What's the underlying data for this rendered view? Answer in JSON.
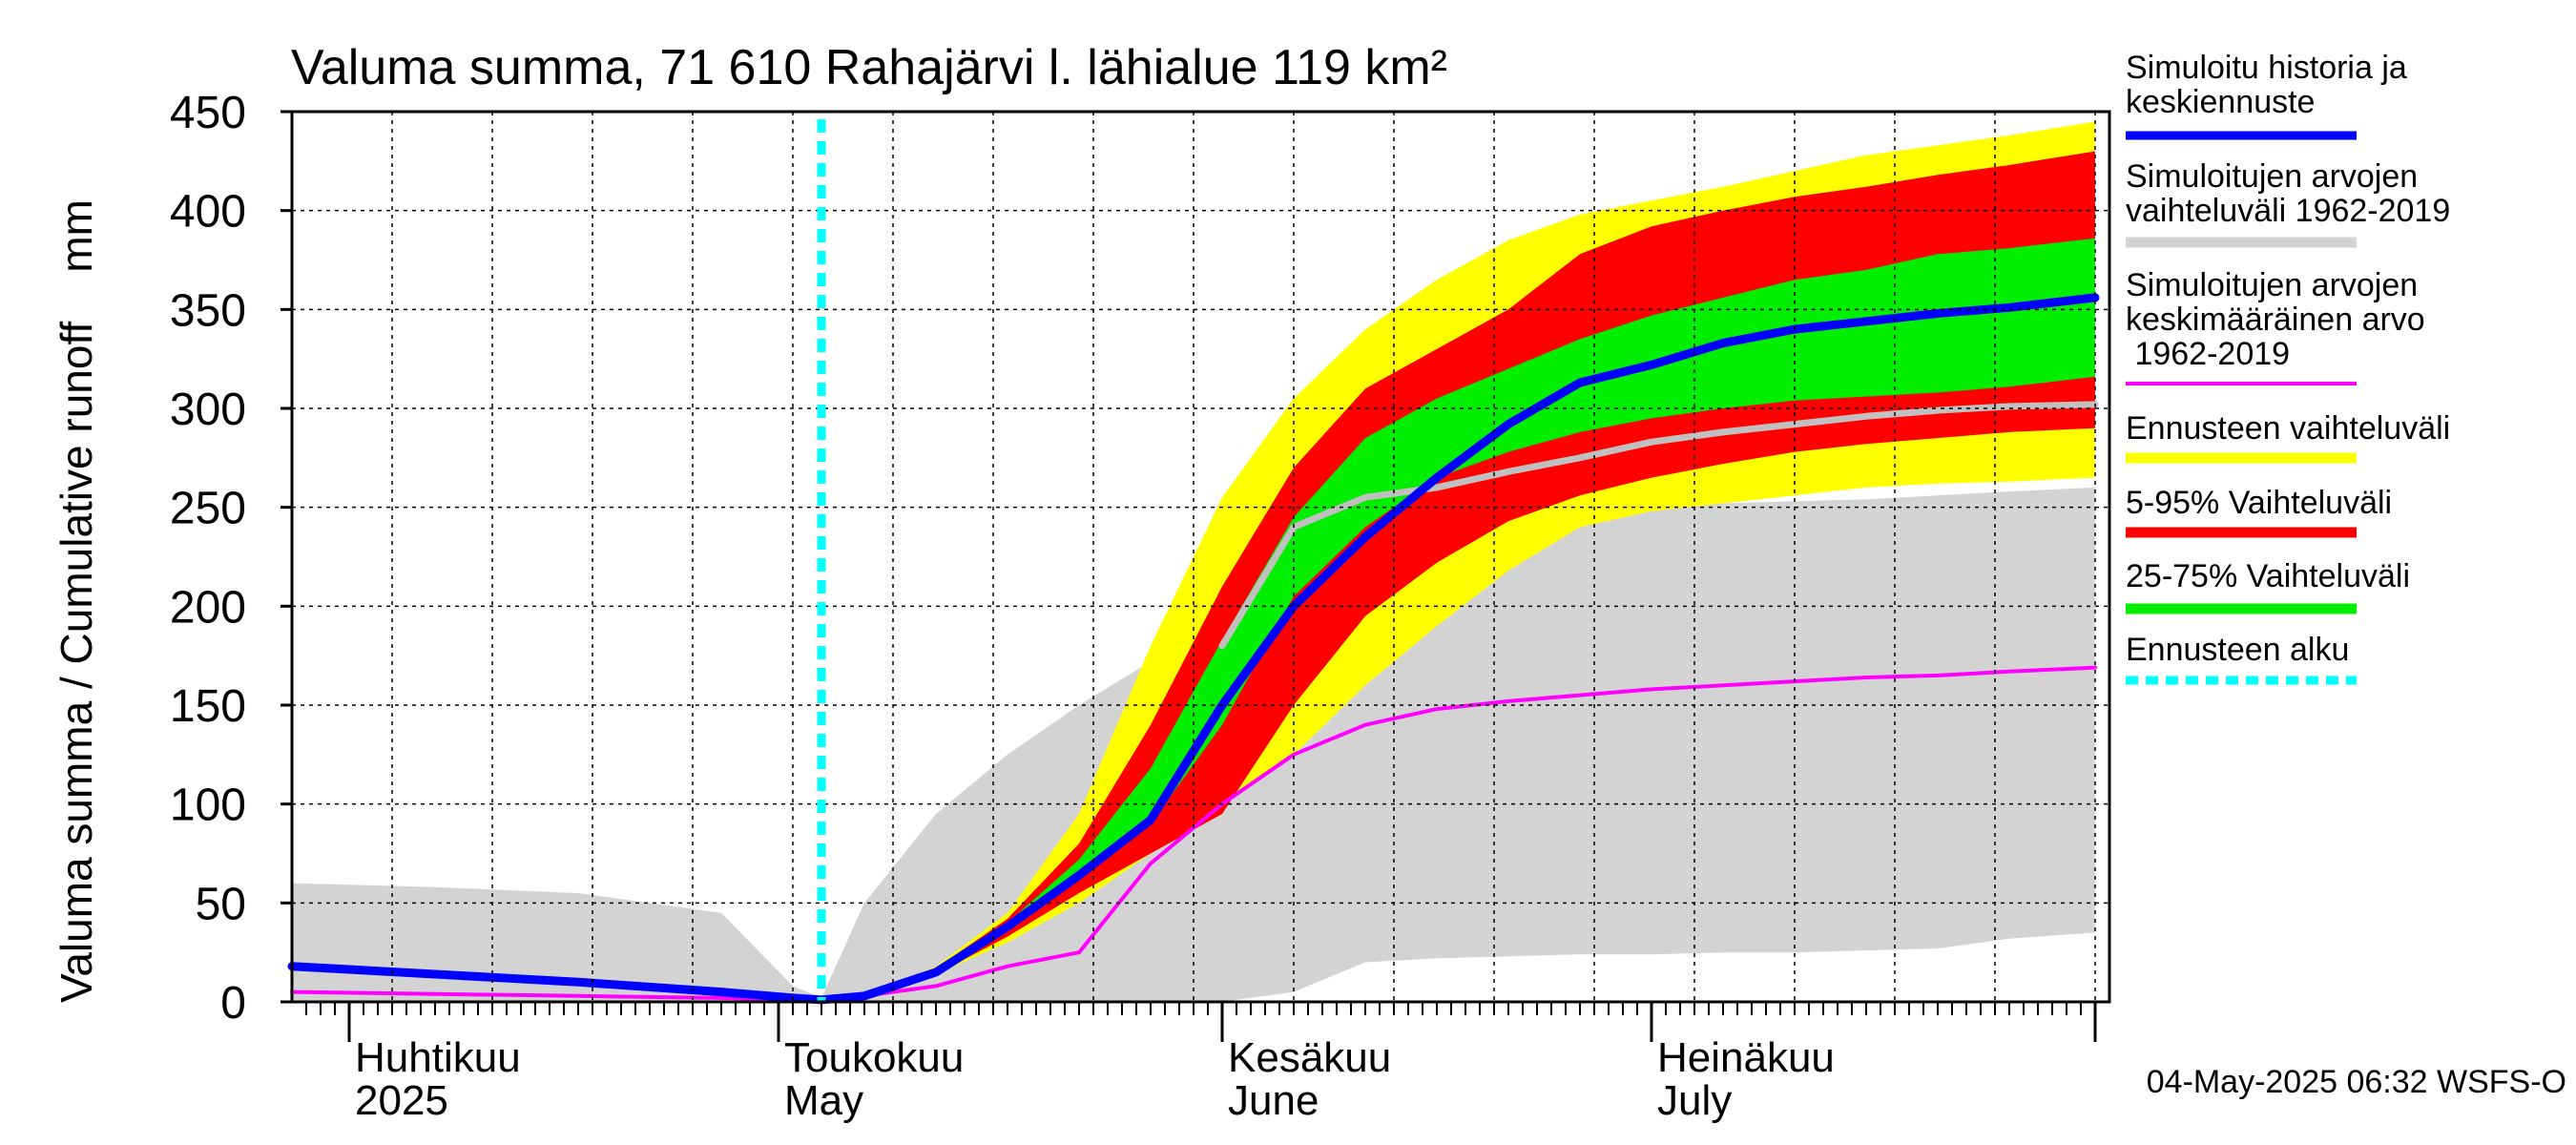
{
  "chart_data": {
    "type": "area",
    "title": "Valuma summa, 71 610 Rahajärvi l. lähialue 119 km²",
    "ylabel": "Valuma summa / Cumulative runoff    mm",
    "ylim": [
      0,
      450
    ],
    "y_ticks": [
      0,
      50,
      100,
      150,
      200,
      250,
      300,
      350,
      400,
      450
    ],
    "xlim": [
      "2025-03-28",
      "2025-08-02"
    ],
    "forecast_start": "2025-05-04",
    "grid": true,
    "legend_position": "right",
    "month_labels": [
      {
        "fi": "Huhtikuu",
        "en": "2025",
        "date": "2025-04-01"
      },
      {
        "fi": "Toukokuu",
        "en": "May",
        "date": "2025-05-01"
      },
      {
        "fi": "Kesäkuu",
        "en": "June",
        "date": "2025-06-01"
      },
      {
        "fi": "Heinäkuu",
        "en": "July",
        "date": "2025-07-01"
      }
    ],
    "footer": "04-May-2025 06:32 WSFS-O",
    "legend": [
      {
        "label": "Simuloitu historia ja keskiennuste",
        "color": "#0000ff"
      },
      {
        "label": "Simuloitujen arvojen vaihteluväli 1962-2019",
        "color": "#d3d3d3"
      },
      {
        "label": "Simuloitujen arvojen keskimääräinen arvo 1962-2019",
        "color": "#ff00ff"
      },
      {
        "label": "Ennusteen vaihteluväli",
        "color": "#ffff00"
      },
      {
        "label": "5-95% Vaihteluväli",
        "color": "#ff0000"
      },
      {
        "label": "25-75% Vaihteluväli",
        "color": "#00ee00"
      },
      {
        "label": "Ennusteen alku",
        "color": "#00ffff"
      }
    ],
    "x_days": [
      0,
      10,
      20,
      30,
      35,
      37,
      40,
      45,
      50,
      55,
      60,
      65,
      70,
      75,
      80,
      85,
      90,
      95,
      100,
      105,
      110,
      115,
      120,
      126
    ],
    "series": [
      {
        "name": "Simuloitujen arvojen vaihteluväli 1962-2019",
        "color": "#d3d3d3",
        "low": [
          0,
          0,
          0,
          0,
          0,
          0,
          0,
          0,
          0,
          0,
          0,
          0,
          5,
          20,
          22,
          23,
          24,
          24,
          25,
          25,
          26,
          27,
          32,
          35
        ],
        "high": [
          60,
          58,
          55,
          45,
          8,
          2,
          50,
          95,
          125,
          150,
          172,
          180,
          210,
          225,
          240,
          245,
          248,
          250,
          252,
          253,
          254,
          256,
          258,
          260
        ]
      },
      {
        "name": "Ennusteen vaihteluväli",
        "color": "#ffff00",
        "low": [
          null,
          null,
          null,
          null,
          0,
          0,
          2,
          14,
          30,
          50,
          75,
          100,
          125,
          160,
          190,
          218,
          240,
          248,
          252,
          256,
          260,
          262,
          263,
          265
        ],
        "high": [
          null,
          null,
          null,
          null,
          0,
          0,
          3,
          18,
          45,
          95,
          180,
          255,
          305,
          340,
          365,
          385,
          398,
          405,
          412,
          420,
          428,
          433,
          438,
          445
        ]
      },
      {
        "name": "5-95% Vaihteluväli",
        "color": "#ff0000",
        "low": [
          null,
          null,
          null,
          null,
          0,
          0,
          2,
          14,
          33,
          55,
          75,
          95,
          150,
          195,
          222,
          243,
          256,
          265,
          272,
          278,
          282,
          285,
          288,
          290
        ],
        "high": [
          null,
          null,
          null,
          null,
          0,
          0,
          3,
          17,
          42,
          80,
          140,
          210,
          270,
          310,
          330,
          350,
          378,
          392,
          400,
          407,
          412,
          418,
          423,
          430
        ]
      },
      {
        "name": "25-75% Vaihteluväli",
        "color": "#00ee00",
        "low": [
          null,
          null,
          null,
          null,
          0,
          0,
          2,
          15,
          37,
          62,
          90,
          140,
          205,
          240,
          265,
          278,
          288,
          295,
          300,
          304,
          306,
          308,
          311,
          316
        ],
        "high": [
          null,
          null,
          null,
          null,
          0,
          0,
          3,
          16,
          40,
          72,
          118,
          183,
          245,
          285,
          305,
          320,
          335,
          347,
          356,
          365,
          370,
          378,
          381,
          386
        ]
      },
      {
        "name": "Simuloitujen arvojen keskimääräinen arvo 1962-2019",
        "color": "#c0c0c0",
        "width": 7,
        "values": [
          null,
          null,
          null,
          null,
          null,
          null,
          null,
          null,
          null,
          null,
          null,
          180,
          240,
          255,
          260,
          268,
          275,
          283,
          288,
          292,
          296,
          299,
          301,
          302
        ]
      },
      {
        "name": "Simuloitujen arvojen keskimääräinen arvo 1962-2019",
        "color": "#ff00ff",
        "width": 4,
        "values": [
          5,
          4,
          3,
          2,
          1,
          1,
          3,
          8,
          18,
          25,
          70,
          100,
          125,
          140,
          148,
          152,
          155,
          158,
          160,
          162,
          164,
          165,
          167,
          169
        ]
      },
      {
        "name": "Simuloitu historia ja keskiennuste",
        "color": "#0000ff",
        "width": 9,
        "values": [
          18,
          14,
          10,
          5,
          2,
          1,
          3,
          15,
          38,
          64,
          92,
          150,
          200,
          235,
          265,
          292,
          313,
          322,
          333,
          340,
          344,
          348,
          351,
          356
        ]
      }
    ]
  }
}
